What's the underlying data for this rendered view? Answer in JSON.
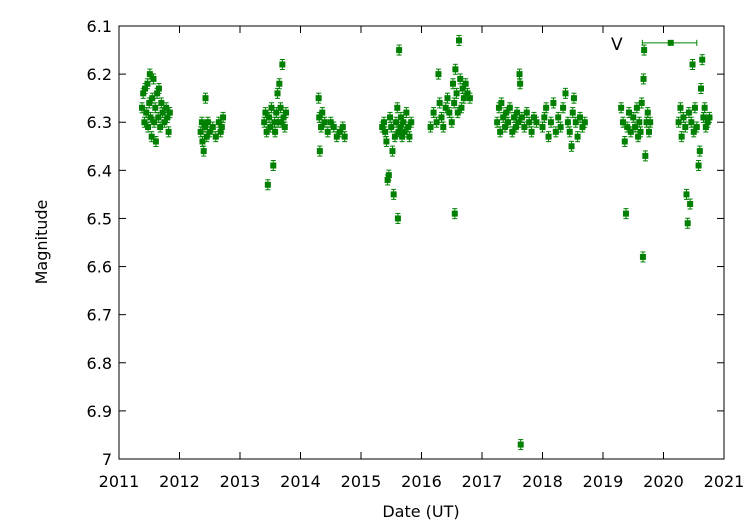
{
  "chart_data": {
    "type": "scatter",
    "title": "",
    "xlabel": "Date (UT)",
    "ylabel": "Magnitude",
    "xlim": [
      2011,
      2021
    ],
    "ylim": [
      6.1,
      7.0
    ],
    "y_inverted": true,
    "grid": false,
    "x_ticks": [
      "2011",
      "2012",
      "2013",
      "2014",
      "2015",
      "2016",
      "2017",
      "2018",
      "2019",
      "2020",
      "2021"
    ],
    "y_ticks": [
      "6.1",
      "6.2",
      "6.3",
      "6.4",
      "6.5",
      "6.6",
      "6.7",
      "6.8",
      "6.9",
      "7"
    ],
    "marker_color": "#008000",
    "legend": {
      "label": "V",
      "placement": "top-right",
      "marker_x": 2020.12,
      "marker_y": 6.135,
      "error_x": [
        2019.65,
        2020.55
      ]
    },
    "series": [
      {
        "name": "V",
        "points": [
          [
            2011.38,
            6.27
          ],
          [
            2011.4,
            6.24
          ],
          [
            2011.42,
            6.3
          ],
          [
            2011.43,
            6.23
          ],
          [
            2011.45,
            6.28
          ],
          [
            2011.47,
            6.22
          ],
          [
            2011.48,
            6.31
          ],
          [
            2011.5,
            6.26
          ],
          [
            2011.51,
            6.2
          ],
          [
            2011.52,
            6.29
          ],
          [
            2011.54,
            6.33
          ],
          [
            2011.55,
            6.25
          ],
          [
            2011.57,
            6.21
          ],
          [
            2011.58,
            6.3
          ],
          [
            2011.6,
            6.27
          ],
          [
            2011.61,
            6.34
          ],
          [
            2011.63,
            6.24
          ],
          [
            2011.65,
            6.29
          ],
          [
            2011.66,
            6.23
          ],
          [
            2011.68,
            6.31
          ],
          [
            2011.7,
            6.26
          ],
          [
            2011.72,
            6.28
          ],
          [
            2011.75,
            6.3
          ],
          [
            2011.78,
            6.27
          ],
          [
            2011.8,
            6.29
          ],
          [
            2011.82,
            6.32
          ],
          [
            2011.84,
            6.28
          ],
          [
            2012.35,
            6.32
          ],
          [
            2012.37,
            6.3
          ],
          [
            2012.38,
            6.34
          ],
          [
            2012.4,
            6.36
          ],
          [
            2012.42,
            6.31
          ],
          [
            2012.43,
            6.25
          ],
          [
            2012.45,
            6.33
          ],
          [
            2012.47,
            6.3
          ],
          [
            2012.5,
            6.32
          ],
          [
            2012.55,
            6.31
          ],
          [
            2012.6,
            6.33
          ],
          [
            2012.65,
            6.3
          ],
          [
            2012.68,
            6.32
          ],
          [
            2012.7,
            6.31
          ],
          [
            2012.72,
            6.29
          ],
          [
            2013.4,
            6.3
          ],
          [
            2013.42,
            6.28
          ],
          [
            2013.44,
            6.32
          ],
          [
            2013.46,
            6.43
          ],
          [
            2013.48,
            6.29
          ],
          [
            2013.5,
            6.31
          ],
          [
            2013.52,
            6.27
          ],
          [
            2013.55,
            6.39
          ],
          [
            2013.57,
            6.3
          ],
          [
            2013.58,
            6.32
          ],
          [
            2013.6,
            6.28
          ],
          [
            2013.62,
            6.24
          ],
          [
            2013.63,
            6.3
          ],
          [
            2013.65,
            6.22
          ],
          [
            2013.67,
            6.27
          ],
          [
            2013.68,
            6.3
          ],
          [
            2013.7,
            6.18
          ],
          [
            2013.72,
            6.29
          ],
          [
            2013.74,
            6.31
          ],
          [
            2013.76,
            6.28
          ],
          [
            2014.3,
            6.25
          ],
          [
            2014.31,
            6.29
          ],
          [
            2014.32,
            6.36
          ],
          [
            2014.34,
            6.31
          ],
          [
            2014.36,
            6.28
          ],
          [
            2014.4,
            6.3
          ],
          [
            2014.45,
            6.32
          ],
          [
            2014.5,
            6.3
          ],
          [
            2014.55,
            6.31
          ],
          [
            2014.6,
            6.33
          ],
          [
            2014.65,
            6.32
          ],
          [
            2014.7,
            6.31
          ],
          [
            2014.73,
            6.33
          ],
          [
            2015.35,
            6.31
          ],
          [
            2015.38,
            6.3
          ],
          [
            2015.4,
            6.32
          ],
          [
            2015.42,
            6.34
          ],
          [
            2015.44,
            6.42
          ],
          [
            2015.46,
            6.41
          ],
          [
            2015.48,
            6.29
          ],
          [
            2015.5,
            6.31
          ],
          [
            2015.52,
            6.36
          ],
          [
            2015.54,
            6.45
          ],
          [
            2015.56,
            6.33
          ],
          [
            2015.58,
            6.3
          ],
          [
            2015.6,
            6.27
          ],
          [
            2015.61,
            6.5
          ],
          [
            2015.62,
            6.32
          ],
          [
            2015.63,
            6.15
          ],
          [
            2015.65,
            6.31
          ],
          [
            2015.66,
            6.29
          ],
          [
            2015.68,
            6.33
          ],
          [
            2015.7,
            6.3
          ],
          [
            2015.72,
            6.32
          ],
          [
            2015.75,
            6.28
          ],
          [
            2015.78,
            6.31
          ],
          [
            2015.8,
            6.33
          ],
          [
            2015.83,
            6.3
          ],
          [
            2016.15,
            6.31
          ],
          [
            2016.2,
            6.28
          ],
          [
            2016.25,
            6.3
          ],
          [
            2016.28,
            6.2
          ],
          [
            2016.3,
            6.26
          ],
          [
            2016.33,
            6.29
          ],
          [
            2016.36,
            6.31
          ],
          [
            2016.4,
            6.27
          ],
          [
            2016.43,
            6.25
          ],
          [
            2016.46,
            6.28
          ],
          [
            2016.5,
            6.3
          ],
          [
            2016.52,
            6.22
          ],
          [
            2016.54,
            6.26
          ],
          [
            2016.55,
            6.49
          ],
          [
            2016.56,
            6.19
          ],
          [
            2016.58,
            6.24
          ],
          [
            2016.6,
            6.28
          ],
          [
            2016.62,
            6.13
          ],
          [
            2016.64,
            6.21
          ],
          [
            2016.66,
            6.27
          ],
          [
            2016.68,
            6.23
          ],
          [
            2016.7,
            6.25
          ],
          [
            2016.73,
            6.22
          ],
          [
            2016.76,
            6.24
          ],
          [
            2016.8,
            6.25
          ],
          [
            2017.25,
            6.3
          ],
          [
            2017.28,
            6.27
          ],
          [
            2017.3,
            6.32
          ],
          [
            2017.32,
            6.26
          ],
          [
            2017.35,
            6.29
          ],
          [
            2017.38,
            6.31
          ],
          [
            2017.4,
            6.28
          ],
          [
            2017.43,
            6.3
          ],
          [
            2017.46,
            6.27
          ],
          [
            2017.5,
            6.32
          ],
          [
            2017.53,
            6.29
          ],
          [
            2017.56,
            6.31
          ],
          [
            2017.58,
            6.28
          ],
          [
            2017.6,
            6.3
          ],
          [
            2017.62,
            6.2
          ],
          [
            2017.63,
            6.22
          ],
          [
            2017.64,
            6.97
          ],
          [
            2017.66,
            6.29
          ],
          [
            2017.7,
            6.31
          ],
          [
            2017.74,
            6.28
          ],
          [
            2017.78,
            6.3
          ],
          [
            2017.82,
            6.32
          ],
          [
            2017.86,
            6.29
          ],
          [
            2017.9,
            6.3
          ],
          [
            2018.0,
            6.31
          ],
          [
            2018.03,
            6.29
          ],
          [
            2018.06,
            6.27
          ],
          [
            2018.1,
            6.33
          ],
          [
            2018.14,
            6.3
          ],
          [
            2018.18,
            6.26
          ],
          [
            2018.22,
            6.32
          ],
          [
            2018.26,
            6.29
          ],
          [
            2018.3,
            6.31
          ],
          [
            2018.34,
            6.27
          ],
          [
            2018.38,
            6.24
          ],
          [
            2018.42,
            6.3
          ],
          [
            2018.45,
            6.32
          ],
          [
            2018.48,
            6.35
          ],
          [
            2018.5,
            6.28
          ],
          [
            2018.52,
            6.25
          ],
          [
            2018.55,
            6.3
          ],
          [
            2018.58,
            6.33
          ],
          [
            2018.62,
            6.29
          ],
          [
            2018.66,
            6.31
          ],
          [
            2018.7,
            6.3
          ],
          [
            2019.3,
            6.27
          ],
          [
            2019.33,
            6.3
          ],
          [
            2019.36,
            6.34
          ],
          [
            2019.38,
            6.49
          ],
          [
            2019.4,
            6.31
          ],
          [
            2019.43,
            6.28
          ],
          [
            2019.46,
            6.32
          ],
          [
            2019.5,
            6.29
          ],
          [
            2019.53,
            6.31
          ],
          [
            2019.56,
            6.27
          ],
          [
            2019.58,
            6.33
          ],
          [
            2019.6,
            6.3
          ],
          [
            2019.62,
            6.32
          ],
          [
            2019.64,
            6.26
          ],
          [
            2019.66,
            6.58
          ],
          [
            2019.67,
            6.21
          ],
          [
            2019.68,
            6.15
          ],
          [
            2019.7,
            6.37
          ],
          [
            2019.72,
            6.3
          ],
          [
            2019.74,
            6.28
          ],
          [
            2019.76,
            6.32
          ],
          [
            2019.78,
            6.3
          ],
          [
            2020.25,
            6.3
          ],
          [
            2020.28,
            6.27
          ],
          [
            2020.3,
            6.33
          ],
          [
            2020.33,
            6.29
          ],
          [
            2020.36,
            6.31
          ],
          [
            2020.38,
            6.45
          ],
          [
            2020.4,
            6.51
          ],
          [
            2020.42,
            6.28
          ],
          [
            2020.44,
            6.47
          ],
          [
            2020.46,
            6.3
          ],
          [
            2020.48,
            6.18
          ],
          [
            2020.5,
            6.32
          ],
          [
            2020.52,
            6.27
          ],
          [
            2020.55,
            6.31
          ],
          [
            2020.58,
            6.39
          ],
          [
            2020.6,
            6.36
          ],
          [
            2020.62,
            6.23
          ],
          [
            2020.64,
            6.17
          ],
          [
            2020.66,
            6.29
          ],
          [
            2020.68,
            6.27
          ],
          [
            2020.7,
            6.31
          ],
          [
            2020.73,
            6.3
          ],
          [
            2020.76,
            6.29
          ]
        ]
      }
    ]
  }
}
